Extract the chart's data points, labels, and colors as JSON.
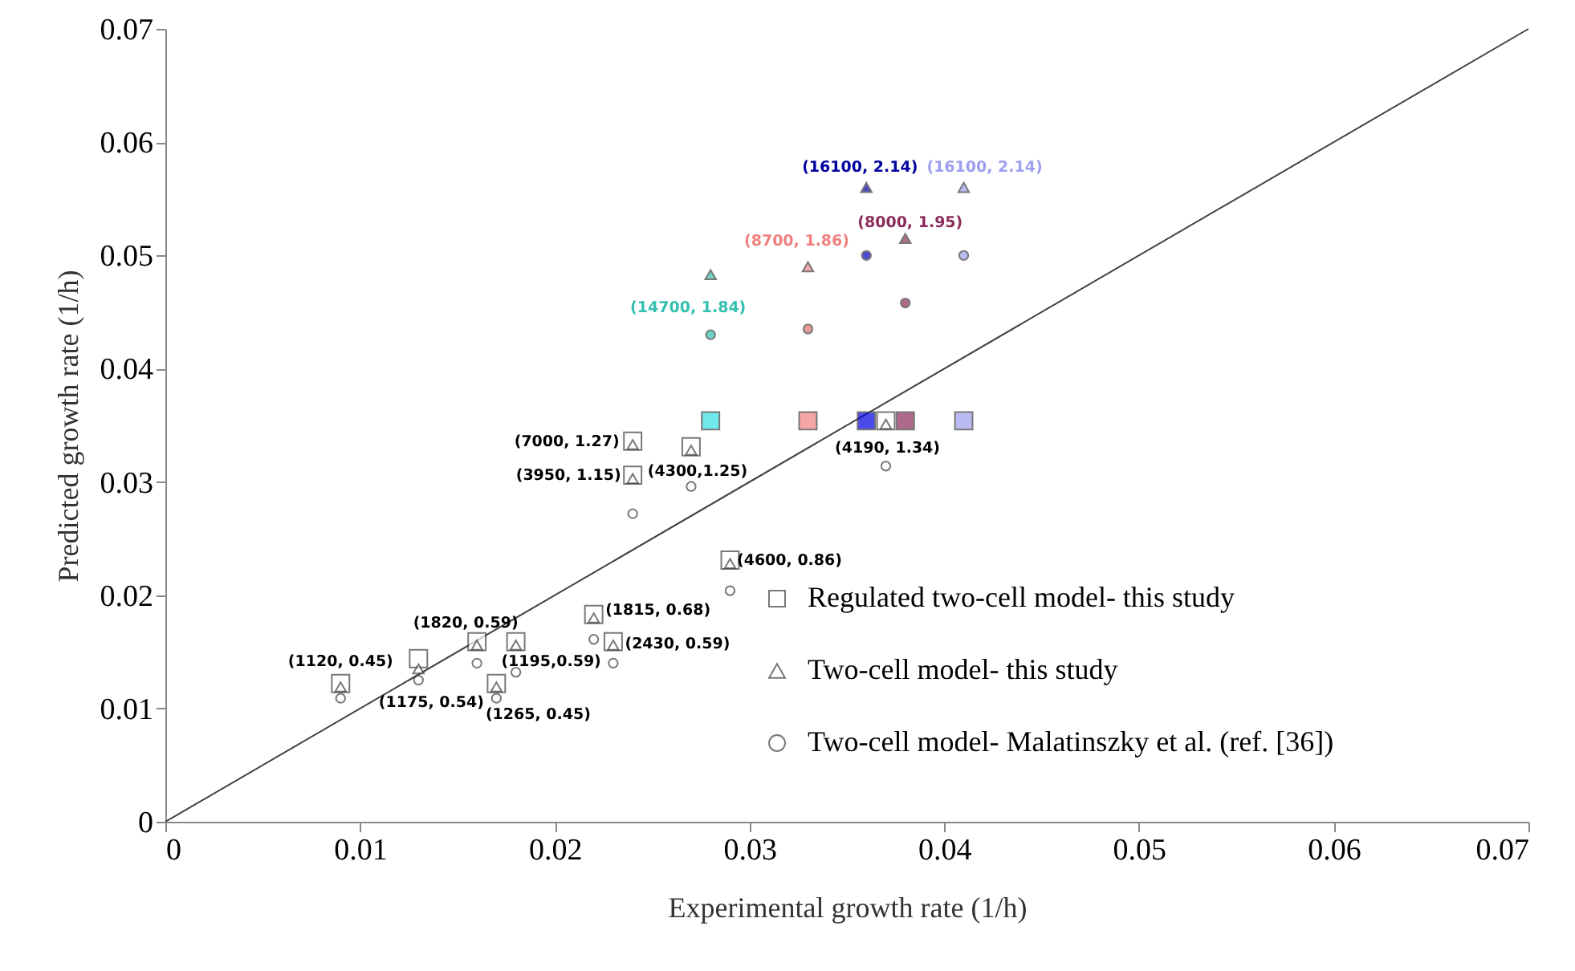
{
  "chart_data": {
    "type": "scatter",
    "xlabel": "Experimental growth rate (1/h)",
    "ylabel": "Predicted growth rate (1/h)",
    "xlim": [
      0,
      0.07
    ],
    "ylim": [
      0,
      0.07
    ],
    "xticks": [
      0,
      0.01,
      0.02,
      0.03,
      0.04,
      0.05,
      0.06,
      0.07
    ],
    "yticks": [
      0,
      0.01,
      0.02,
      0.03,
      0.04,
      0.05,
      0.06,
      0.07
    ],
    "grid": false,
    "legend": "bottom right",
    "series": [
      {
        "type": "line",
        "color": "#404040",
        "x": [
          0,
          0.07
        ],
        "values": [
          0,
          0.07
        ],
        "marker": "none"
      },
      {
        "name": "Regulated two-cell model- this study",
        "marker": "square",
        "color": "#404040",
        "x": [
          0.009,
          0.013,
          0.016,
          0.018,
          0.017,
          0.022,
          0.023,
          0.029,
          0.024,
          0.027,
          0.024,
          0.037,
          0.028,
          0.033,
          0.036,
          0.038,
          0.041
        ],
        "values": [
          0.0122,
          0.0144,
          0.0159,
          0.0159,
          0.0122,
          0.0183,
          0.0159,
          0.0231,
          0.0336,
          0.0331,
          0.0306,
          0.0354,
          0.0354,
          0.0354,
          0.0354,
          0.0354,
          0.0354
        ],
        "colors": [
          "#ffffff",
          "#ffffff",
          "#ffffff",
          "#ffffff",
          "#ffffff",
          "#ffffff",
          "#ffffff",
          "#ffffff",
          "#ffffff",
          "#ffffff",
          "#ffffff",
          "#ffffff",
          "#33e0e0",
          "#f08080",
          "#0000e0",
          "#8b2c5a",
          "#9f9ff0"
        ]
      },
      {
        "name": "Two-cell model- this study",
        "marker": "triangle",
        "color": "#404040",
        "x": [
          0.009,
          0.013,
          0.016,
          0.018,
          0.017,
          0.022,
          0.023,
          0.029,
          0.024,
          0.027,
          0.024,
          0.037,
          0.028,
          0.033,
          0.036,
          0.038,
          0.041
        ],
        "values": [
          0.0119,
          0.0135,
          0.0156,
          0.0156,
          0.0119,
          0.018,
          0.0156,
          0.0228,
          0.0333,
          0.0328,
          0.0303,
          0.0351,
          0.0483,
          0.049,
          0.056,
          0.0515,
          0.056
        ],
        "colors": [
          "#ffffff",
          "#ffffff",
          "#ffffff",
          "#ffffff",
          "#ffffff",
          "#ffffff",
          "#ffffff",
          "#ffffff",
          "#ffffff",
          "#ffffff",
          "#ffffff",
          "#ffffff",
          "#33c0b0",
          "#f08080",
          "#0000a0",
          "#8b2c5a",
          "#9f9ff0"
        ]
      },
      {
        "name": "Two-cell model- Malatinszky et al. (ref. [36])",
        "marker": "circle",
        "color": "#404040",
        "x": [
          0.009,
          0.013,
          0.016,
          0.018,
          0.017,
          0.022,
          0.023,
          0.029,
          0.027,
          0.024,
          0.037,
          0.028,
          0.033,
          0.036,
          0.038,
          0.041
        ],
        "values": [
          0.0109,
          0.0125,
          0.014,
          0.0132,
          0.0109,
          0.0161,
          0.014,
          0.0204,
          0.0296,
          0.0272,
          0.0314,
          0.043,
          0.0435,
          0.05,
          0.0458,
          0.05
        ],
        "colors": [
          "#ffffff",
          "#ffffff",
          "#ffffff",
          "#ffffff",
          "#ffffff",
          "#ffffff",
          "#ffffff",
          "#ffffff",
          "#ffffff",
          "#ffffff",
          "#ffffff",
          "#33c0b0",
          "#e07070",
          "#0000c0",
          "#8b2c5a",
          "#9f9ff0"
        ]
      }
    ],
    "annotations": [
      {
        "text": "(16100, 2.14)",
        "x": 0.036,
        "y": 0.056
      },
      {
        "text": "(16100, 2.14)",
        "x": 0.041,
        "y": 0.056
      },
      {
        "text": "(8000, 1.95)",
        "x": 0.038,
        "y": 0.0515
      },
      {
        "text": "(8700, 1.86)",
        "x": 0.033,
        "y": 0.049
      },
      {
        "text": "(14700, 1.84)",
        "x": 0.028,
        "y": 0.043
      },
      {
        "text": "(7000, 1.27)",
        "x": 0.024,
        "y": 0.0336
      },
      {
        "text": "(3950, 1.15)",
        "x": 0.024,
        "y": 0.0306
      },
      {
        "text": "(4300,1.25)",
        "x": 0.027,
        "y": 0.0331
      },
      {
        "text": "(4190, 1.34)",
        "x": 0.037,
        "y": 0.0354
      },
      {
        "text": "(4600, 0.86)",
        "x": 0.029,
        "y": 0.0231
      },
      {
        "text": "(1815, 0.68)",
        "x": 0.022,
        "y": 0.0183
      },
      {
        "text": "(2430, 0.59)",
        "x": 0.023,
        "y": 0.0159
      },
      {
        "text": "(1820, 0.59)",
        "x": 0.016,
        "y": 0.0159
      },
      {
        "text": "(1195,0.59)",
        "x": 0.018,
        "y": 0.0159
      },
      {
        "text": "(1120, 0.45)",
        "x": 0.009,
        "y": 0.0122
      },
      {
        "text": "(1175, 0.54)",
        "x": 0.013,
        "y": 0.0144
      },
      {
        "text": "(1265, 0.45)",
        "x": 0.017,
        "y": 0.0122
      }
    ]
  }
}
